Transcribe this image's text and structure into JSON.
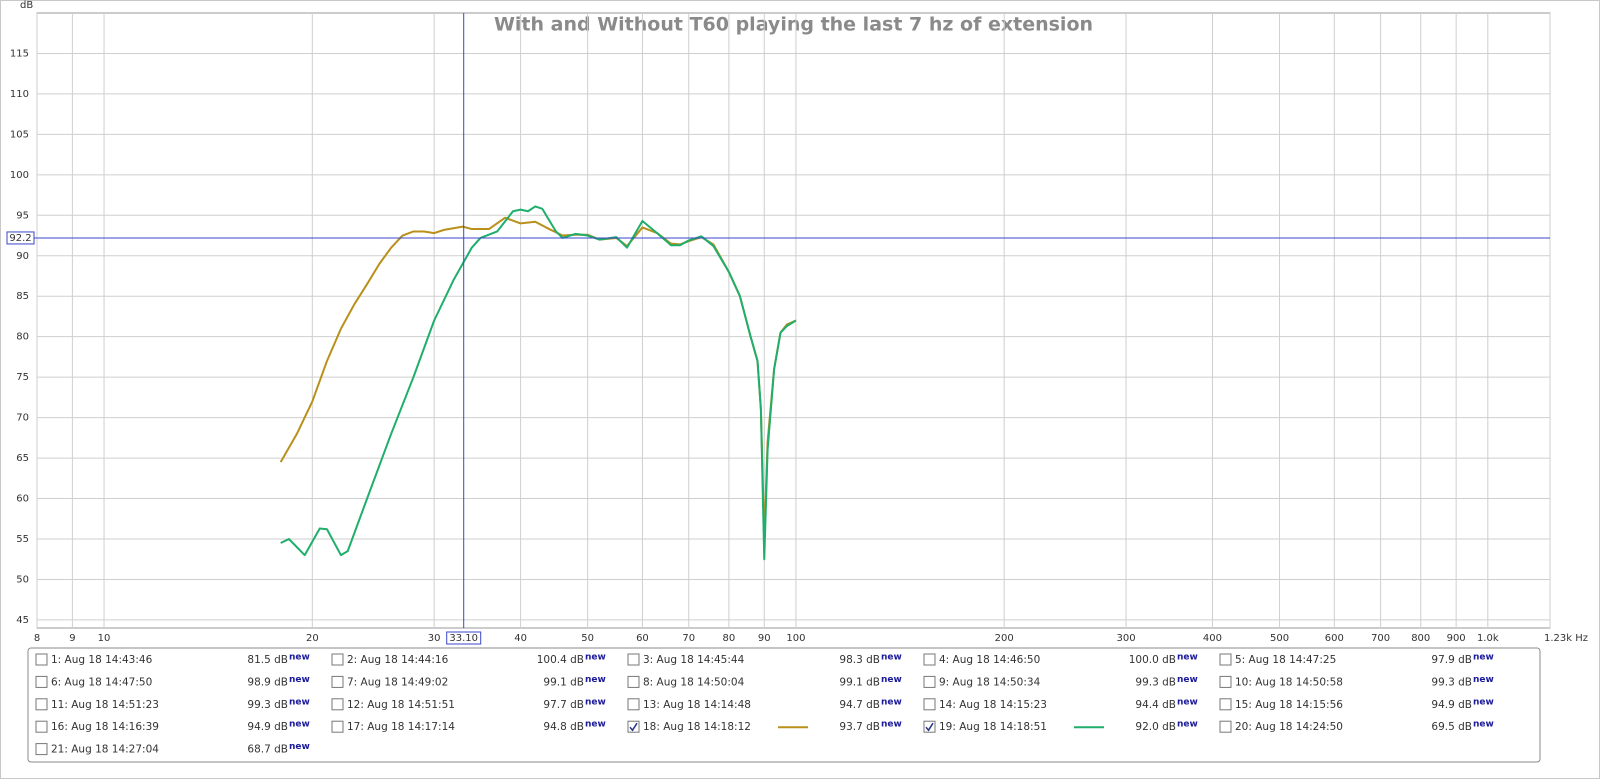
{
  "chart_data": {
    "type": "line",
    "title": "With and Without T60 playing the last 7 hz of extension",
    "y_label": "dB",
    "log_x": true,
    "grid": true,
    "xlim": [
      8,
      1230
    ],
    "ylim": [
      44,
      120
    ],
    "xticks": [
      8,
      9,
      10,
      20,
      30,
      40,
      50,
      60,
      70,
      80,
      90,
      100,
      200,
      300,
      400,
      500,
      600,
      700,
      800,
      900,
      {
        "value": 1000,
        "label": "1.0k"
      },
      {
        "value": 1230,
        "label": "1.23k Hz"
      }
    ],
    "yticks": [
      45,
      50,
      55,
      60,
      65,
      70,
      75,
      80,
      85,
      90,
      95,
      100,
      105,
      110,
      115
    ],
    "cursor": {
      "x": {
        "value": 33.1,
        "label": "33.10"
      },
      "y": 92.2,
      "color": "#3a46c8"
    },
    "series": [
      {
        "name": "18: Aug 18 14:18:12",
        "color": "#b8901a",
        "x": [
          18,
          19,
          20,
          21,
          22,
          23,
          24,
          25,
          26,
          27,
          28,
          29,
          30,
          31,
          33,
          34,
          36,
          38,
          40,
          42,
          44,
          46,
          48,
          50,
          52,
          55,
          57,
          60,
          63,
          66,
          68,
          70,
          73,
          76,
          80,
          83,
          86,
          88,
          89,
          90,
          91,
          93,
          95,
          97,
          100
        ],
        "values": [
          64.5,
          68,
          72,
          77,
          81,
          84,
          86.5,
          89,
          91,
          92.5,
          93,
          93,
          92.8,
          93.2,
          93.6,
          93.3,
          93.3,
          94.7,
          94,
          94.2,
          93.3,
          92.5,
          92.6,
          92.6,
          92,
          92.2,
          91.2,
          93.5,
          92.8,
          91.5,
          91.4,
          91.8,
          92.3,
          91.4,
          88,
          85,
          80,
          77,
          71,
          55,
          67,
          76,
          80.5,
          81.5,
          82
        ]
      },
      {
        "name": "19: Aug 18 14:18:51",
        "color": "#1fae6b",
        "x": [
          18,
          18.5,
          19.5,
          20.5,
          21,
          22,
          22.5,
          24,
          26,
          28,
          30,
          32,
          34,
          35,
          37,
          39,
          40,
          41,
          42,
          43,
          45,
          46,
          48,
          50,
          52,
          55,
          57,
          60,
          63,
          66,
          68,
          70,
          73,
          76,
          80,
          83,
          86,
          88,
          89,
          90,
          91,
          93,
          95,
          97,
          100
        ],
        "values": [
          54.5,
          55,
          53,
          56.3,
          56.2,
          53,
          53.5,
          60,
          68,
          75,
          82,
          87,
          91,
          92.2,
          93,
          95.5,
          95.7,
          95.5,
          96.1,
          95.8,
          93,
          92.2,
          92.7,
          92.5,
          92,
          92.3,
          91,
          94.3,
          92.8,
          91.3,
          91.3,
          91.9,
          92.4,
          91.2,
          88,
          85,
          80,
          77,
          71,
          52.5,
          66,
          76,
          80.5,
          81.3,
          82
        ]
      }
    ]
  },
  "measurements": [
    {
      "name": "1: Aug 18 14:43:46",
      "level": "81.5 dB",
      "tag": "new",
      "color": "#8b008b",
      "checked": false
    },
    {
      "name": "2: Aug 18 14:44:16",
      "level": "100.4 dB",
      "tag": "new",
      "color": "#800080",
      "checked": false
    },
    {
      "name": "3: Aug 18 14:45:44",
      "level": "98.3 dB",
      "tag": "new",
      "color": "#2a7fa0",
      "checked": false
    },
    {
      "name": "4: Aug 18 14:46:50",
      "level": "100.0 dB",
      "tag": "new",
      "color": "#a00000",
      "checked": false
    },
    {
      "name": "5: Aug 18 14:47:25",
      "level": "97.9 dB",
      "tag": "new",
      "color": "#2e8b2e",
      "checked": false
    },
    {
      "name": "6: Aug 18 14:47:50",
      "level": "98.9 dB",
      "tag": "new",
      "color": "#8b1a8b",
      "checked": false
    },
    {
      "name": "7: Aug 18 14:49:02",
      "level": "99.1 dB",
      "tag": "new",
      "color": "#006f7f",
      "checked": false
    },
    {
      "name": "8: Aug 18 14:50:04",
      "level": "99.1 dB",
      "tag": "new",
      "color": "#b8901a",
      "checked": false
    },
    {
      "name": "9: Aug 18 14:50:34",
      "level": "99.3 dB",
      "tag": "new",
      "color": "#2e9b4e",
      "checked": false
    },
    {
      "name": "10: Aug 18 14:50:58",
      "level": "99.3 dB",
      "tag": "new",
      "color": "#7a2a9a",
      "checked": false
    },
    {
      "name": "11: Aug 18 14:51:23",
      "level": "99.3 dB",
      "tag": "new",
      "color": "#9b1a9b",
      "checked": false
    },
    {
      "name": "12: Aug 18 14:51:51",
      "level": "97.7 dB",
      "tag": "new",
      "color": "#3a8aa0",
      "checked": false
    },
    {
      "name": "13: Aug 18 14:14:48",
      "level": "94.7 dB",
      "tag": "new",
      "color": "#a00000",
      "checked": false
    },
    {
      "name": "14: Aug 18 14:15:23",
      "level": "94.4 dB",
      "tag": "new",
      "color": "#1e8b1e",
      "checked": false
    },
    {
      "name": "15: Aug 18 14:15:56",
      "level": "94.9 dB",
      "tag": "new",
      "color": "#000080",
      "checked": false
    },
    {
      "name": "16: Aug 18 14:16:39",
      "level": "94.9 dB",
      "tag": "new",
      "color": "#8b008b",
      "checked": false
    },
    {
      "name": "17: Aug 18 14:17:14",
      "level": "94.8 dB",
      "tag": "new",
      "color": "#006f7f",
      "checked": false
    },
    {
      "level": "93.7 dB",
      "tag": "new",
      "checked": true
    },
    {
      "level": "92.0 dB",
      "tag": "new",
      "checked": true
    },
    {
      "name": "20: Aug 18 14:24:50",
      "level": "69.5 dB",
      "tag": "new",
      "color": "#6a2a8a",
      "checked": false
    },
    {
      "name": "21: Aug 18 14:27:04",
      "level": "68.7 dB",
      "tag": "new",
      "color": "#8b1a8b",
      "checked": false
    }
  ]
}
